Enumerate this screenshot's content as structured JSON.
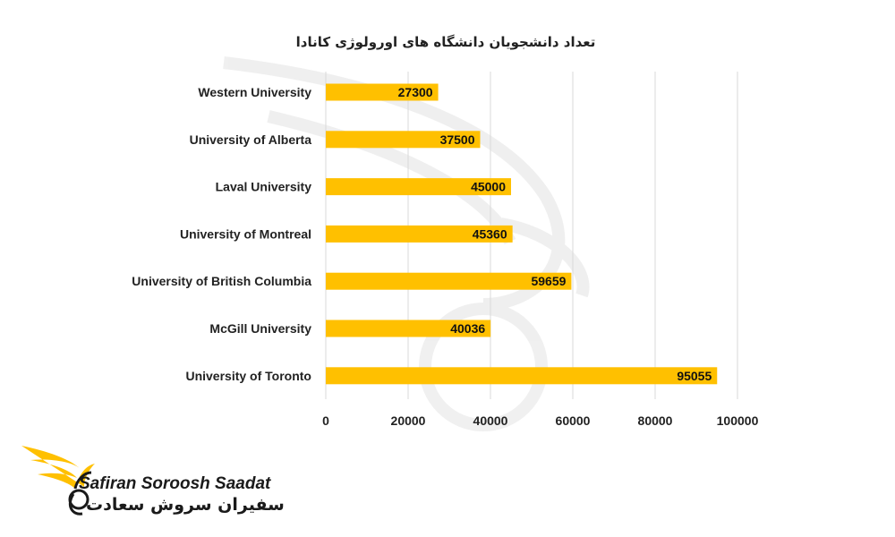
{
  "chart_data": {
    "type": "bar",
    "orientation": "horizontal",
    "title": "تعداد دانشجویان دانشگاه های اورولوژی کانادا",
    "categories": [
      "Western University",
      "University of Alberta",
      "Laval University",
      "University of Montreal",
      "University of British Columbia",
      "McGill University",
      "University of Toronto"
    ],
    "values": [
      27300,
      37500,
      45000,
      45360,
      59659,
      40036,
      95055
    ],
    "data_labels": [
      "27300",
      "37500",
      "45000",
      "45360",
      "59659",
      "40036",
      "95055"
    ],
    "xlim": [
      0,
      100000
    ],
    "xticks": [
      0,
      20000,
      40000,
      60000,
      80000,
      100000
    ],
    "xtick_labels": [
      "0",
      "20000",
      "40000",
      "60000",
      "80000",
      "100000"
    ],
    "grid": "vertical",
    "legend": "none",
    "bar_color": "#FFC000"
  },
  "logo": {
    "name_en": "Safiran Soroosh Saadat",
    "name_fa": "سفیران سروش سعادت",
    "accent_color": "#FFC000",
    "icon": "phoenix-wing-icon"
  }
}
